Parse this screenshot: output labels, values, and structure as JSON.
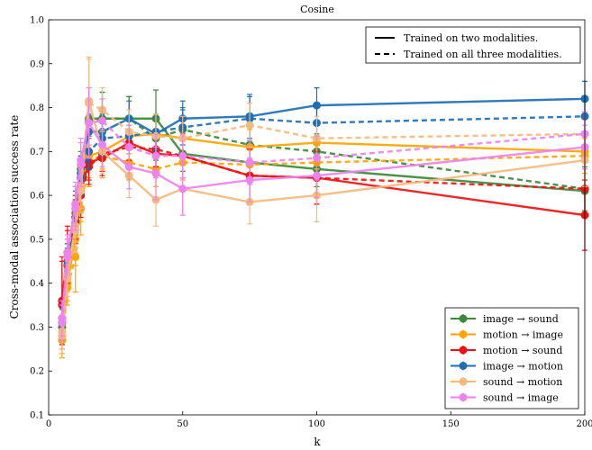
{
  "chart_data": {
    "type": "line",
    "title": "Cosine",
    "xlabel": "k",
    "ylabel": "Cross-modal association success rate",
    "xlim": [
      0,
      200
    ],
    "ylim": [
      0.1,
      1.0
    ],
    "xticks": [
      0,
      50,
      100,
      150,
      200
    ],
    "yticks": [
      0.1,
      0.2,
      0.3,
      0.4,
      0.5,
      0.6,
      0.7,
      0.8,
      0.9,
      1.0
    ],
    "grid": false,
    "style_legend": {
      "placement": "top-right",
      "entries": [
        {
          "label": "Trained on two modalities.",
          "linestyle": "solid"
        },
        {
          "label": "Trained on all three modalities.",
          "linestyle": "dashed"
        }
      ]
    },
    "series_legend": {
      "placement": "bottom-right"
    },
    "x": [
      5,
      7,
      10,
      12,
      15,
      20,
      30,
      40,
      50,
      75,
      100,
      200
    ],
    "series": [
      {
        "name": "image → sound",
        "color": "#3a8a3a",
        "two": [
          0.31,
          0.45,
          0.56,
          0.66,
          0.775,
          0.775,
          0.775,
          0.775,
          0.695,
          0.675,
          0.66,
          0.61
        ],
        "two_err": [
          0.04,
          0.04,
          0.04,
          0.04,
          0.04,
          0.06,
          0.05,
          0.065,
          0.04,
          0.04,
          0.04,
          0.05
        ],
        "three": [
          0.3,
          0.44,
          0.55,
          0.65,
          0.77,
          0.775,
          0.775,
          0.73,
          0.75,
          0.715,
          0.7,
          0.615
        ],
        "three_err": [
          0.04,
          0.04,
          0.04,
          0.04,
          0.04,
          0.06,
          0.05,
          0.05,
          0.05,
          0.04,
          0.04,
          0.05
        ]
      },
      {
        "name": "motion → image",
        "color": "#ffa500",
        "two": [
          0.28,
          0.4,
          0.5,
          0.6,
          0.69,
          0.7,
          0.735,
          0.74,
          0.73,
          0.71,
          0.72,
          0.7
        ],
        "two_err": [
          0.04,
          0.04,
          0.06,
          0.06,
          0.05,
          0.04,
          0.04,
          0.04,
          0.04,
          0.04,
          0.04,
          0.04
        ],
        "three": [
          0.27,
          0.39,
          0.46,
          0.57,
          0.68,
          0.69,
          0.675,
          0.66,
          0.675,
          0.67,
          0.675,
          0.69
        ],
        "three_err": [
          0.04,
          0.04,
          0.08,
          0.06,
          0.06,
          0.05,
          0.04,
          0.04,
          0.04,
          0.04,
          0.04,
          0.04
        ]
      },
      {
        "name": "motion → sound",
        "color": "#ee1111",
        "two": [
          0.36,
          0.47,
          0.55,
          0.61,
          0.675,
          0.685,
          0.72,
          0.695,
          0.69,
          0.645,
          0.64,
          0.555
        ],
        "two_err": [
          0.1,
          0.06,
          0.05,
          0.05,
          0.04,
          0.04,
          0.04,
          0.04,
          0.05,
          0.06,
          0.06,
          0.08
        ],
        "three": [
          0.35,
          0.46,
          0.54,
          0.6,
          0.665,
          0.695,
          0.71,
          0.705,
          0.69,
          0.645,
          0.64,
          0.615
        ],
        "three_err": [
          0.1,
          0.06,
          0.05,
          0.05,
          0.04,
          0.04,
          0.04,
          0.04,
          0.05,
          0.06,
          0.06,
          0.06
        ]
      },
      {
        "name": "image → motion",
        "color": "#1f6fb4",
        "two": [
          0.32,
          0.46,
          0.58,
          0.65,
          0.745,
          0.745,
          0.775,
          0.74,
          0.775,
          0.78,
          0.805,
          0.82
        ],
        "two_err": [
          0.04,
          0.04,
          0.04,
          0.04,
          0.04,
          0.04,
          0.04,
          0.04,
          0.04,
          0.05,
          0.04,
          0.04
        ],
        "three": [
          0.31,
          0.45,
          0.57,
          0.64,
          0.7,
          0.73,
          0.735,
          0.745,
          0.755,
          0.775,
          0.765,
          0.78
        ],
        "three_err": [
          0.04,
          0.04,
          0.04,
          0.04,
          0.04,
          0.04,
          0.04,
          0.04,
          0.04,
          0.05,
          0.04,
          0.04
        ]
      },
      {
        "name": "sound → motion",
        "color": "#f6b97c",
        "two": [
          0.29,
          0.42,
          0.53,
          0.62,
          0.815,
          0.7,
          0.645,
          0.59,
          0.615,
          0.585,
          0.6,
          0.68
        ],
        "two_err": [
          0.04,
          0.04,
          0.05,
          0.05,
          0.1,
          0.05,
          0.05,
          0.06,
          0.06,
          0.05,
          0.06,
          0.06
        ],
        "three": [
          0.28,
          0.41,
          0.52,
          0.61,
          0.81,
          0.795,
          0.745,
          0.735,
          0.73,
          0.76,
          0.73,
          0.74
        ],
        "three_err": [
          0.04,
          0.04,
          0.05,
          0.05,
          0.1,
          0.05,
          0.05,
          0.05,
          0.05,
          0.05,
          0.05,
          0.05
        ]
      },
      {
        "name": "sound → image",
        "color": "#ee82ee",
        "two": [
          0.32,
          0.47,
          0.58,
          0.68,
          0.765,
          0.715,
          0.665,
          0.65,
          0.615,
          0.635,
          0.645,
          0.71
        ],
        "two_err": [
          0.04,
          0.04,
          0.05,
          0.05,
          0.08,
          0.05,
          0.05,
          0.06,
          0.06,
          0.05,
          0.05,
          0.05
        ],
        "three": [
          0.31,
          0.46,
          0.57,
          0.67,
          0.765,
          0.77,
          0.71,
          0.69,
          0.69,
          0.675,
          0.685,
          0.74
        ],
        "three_err": [
          0.04,
          0.04,
          0.05,
          0.05,
          0.08,
          0.05,
          0.05,
          0.05,
          0.05,
          0.05,
          0.05,
          0.05
        ]
      }
    ]
  }
}
